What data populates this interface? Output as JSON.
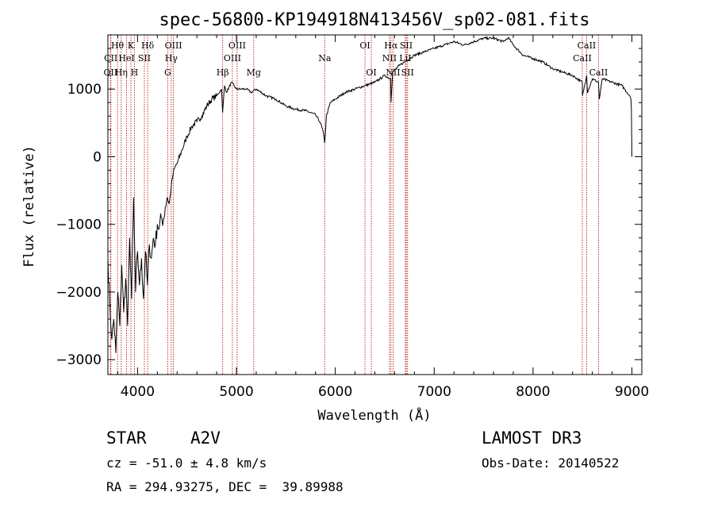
{
  "chart_data": {
    "type": "line",
    "title": "spec-56800-KP194918N413456V_sp02-081.fits",
    "xlabel": "Wavelength (Å)",
    "ylabel": "Flux (relative)",
    "xlim": [
      3700,
      9100
    ],
    "ylim": [
      -3220,
      1800
    ],
    "xticks": [
      4000,
      5000,
      6000,
      7000,
      8000,
      9000
    ],
    "yticks": [
      -3000,
      -2000,
      -1000,
      0,
      1000
    ],
    "series": [
      {
        "name": "flux",
        "x": [
          3700,
          3720,
          3740,
          3760,
          3780,
          3800,
          3820,
          3840,
          3860,
          3880,
          3900,
          3920,
          3940,
          3960,
          3980,
          4000,
          4020,
          4040,
          4060,
          4080,
          4100,
          4120,
          4140,
          4160,
          4180,
          4200,
          4220,
          4240,
          4260,
          4280,
          4300,
          4320,
          4340,
          4360,
          4380,
          4400,
          4450,
          4500,
          4550,
          4600,
          4650,
          4700,
          4750,
          4800,
          4850,
          4860,
          4880,
          4900,
          4950,
          5000,
          5050,
          5100,
          5150,
          5200,
          5300,
          5400,
          5500,
          5600,
          5700,
          5800,
          5850,
          5880,
          5893,
          5910,
          5950,
          6000,
          6100,
          6200,
          6300,
          6400,
          6500,
          6560,
          6563,
          6580,
          6650,
          6700,
          6800,
          6900,
          7000,
          7100,
          7200,
          7300,
          7400,
          7500,
          7600,
          7700,
          7750,
          7800,
          7900,
          8000,
          8100,
          8200,
          8300,
          8400,
          8498,
          8500,
          8542,
          8550,
          8600,
          8662,
          8670,
          8700,
          8800,
          8900,
          8950,
          8980,
          8990,
          8995,
          9000
        ],
        "y": [
          -1500,
          -2200,
          -2700,
          -2400,
          -2900,
          -2000,
          -2500,
          -1600,
          -2300,
          -1800,
          -2500,
          -1200,
          -2100,
          -600,
          -2000,
          -1400,
          -1900,
          -1500,
          -2100,
          -1400,
          -1900,
          -1300,
          -1500,
          -1200,
          -1300,
          -1000,
          -1050,
          -900,
          -950,
          -750,
          -600,
          -700,
          -450,
          -250,
          -150,
          -100,
          100,
          300,
          450,
          520,
          600,
          750,
          850,
          900,
          1000,
          650,
          1050,
          950,
          1100,
          1000,
          1000,
          1000,
          950,
          1000,
          900,
          850,
          750,
          700,
          680,
          620,
          500,
          350,
          200,
          600,
          800,
          850,
          950,
          1000,
          1050,
          1100,
          1200,
          1150,
          800,
          1250,
          1350,
          1400,
          1500,
          1550,
          1600,
          1650,
          1700,
          1650,
          1700,
          1750,
          1750,
          1700,
          1760,
          1650,
          1500,
          1450,
          1400,
          1300,
          1250,
          1200,
          1100,
          900,
          1200,
          950,
          1150,
          1100,
          850,
          1150,
          1100,
          1050,
          950,
          900,
          850,
          700,
          0
        ]
      }
    ],
    "spectral_lines": [
      {
        "name": "Hθ",
        "x": 3797,
        "row": 1
      },
      {
        "name": "CII",
        "x": 3730,
        "row": 2
      },
      {
        "name": "OII",
        "x": 3727,
        "row": 3
      },
      {
        "name": "HeI",
        "x": 3889,
        "row": 2
      },
      {
        "name": "Hη",
        "x": 3835,
        "row": 3
      },
      {
        "name": "K",
        "x": 3933,
        "row": 1
      },
      {
        "name": "H",
        "x": 3968,
        "row": 3
      },
      {
        "name": "SII",
        "x": 4069,
        "row": 2
      },
      {
        "name": "Hδ",
        "x": 4102,
        "row": 1
      },
      {
        "name": "OIII",
        "x": 4363,
        "row": 1
      },
      {
        "name": "Hγ",
        "x": 4341,
        "row": 2
      },
      {
        "name": "G",
        "x": 4305,
        "row": 3
      },
      {
        "name": "OIII",
        "x": 5007,
        "row": 1
      },
      {
        "name": "OIII",
        "x": 4959,
        "row": 2
      },
      {
        "name": "Hβ",
        "x": 4861,
        "row": 3
      },
      {
        "name": "Mg",
        "x": 5175,
        "row": 3
      },
      {
        "name": "Na",
        "x": 5893,
        "row": 2
      },
      {
        "name": "OI",
        "x": 6300,
        "row": 1
      },
      {
        "name": "OI",
        "x": 6364,
        "row": 3
      },
      {
        "name": "Hα",
        "x": 6563,
        "row": 1
      },
      {
        "name": "NII",
        "x": 6548,
        "row": 2
      },
      {
        "name": "NII",
        "x": 6584,
        "row": 3
      },
      {
        "name": "SII",
        "x": 6717,
        "row": 1
      },
      {
        "name": "LiI",
        "x": 6708,
        "row": 2
      },
      {
        "name": "SII",
        "x": 6731,
        "row": 3
      },
      {
        "name": "CaII",
        "x": 8542,
        "row": 1
      },
      {
        "name": "CaII",
        "x": 8498,
        "row": 2
      },
      {
        "name": "CaII",
        "x": 8662,
        "row": 3
      }
    ]
  },
  "info": {
    "object_class": "STAR",
    "subclass": "A2V",
    "survey": "LAMOST DR3",
    "cz": "cz = -51.0 ± 4.8 km/s",
    "obs_date": "Obs-Date: 20140522",
    "coords": "RA = 294.93275, DEC =  39.89988"
  }
}
